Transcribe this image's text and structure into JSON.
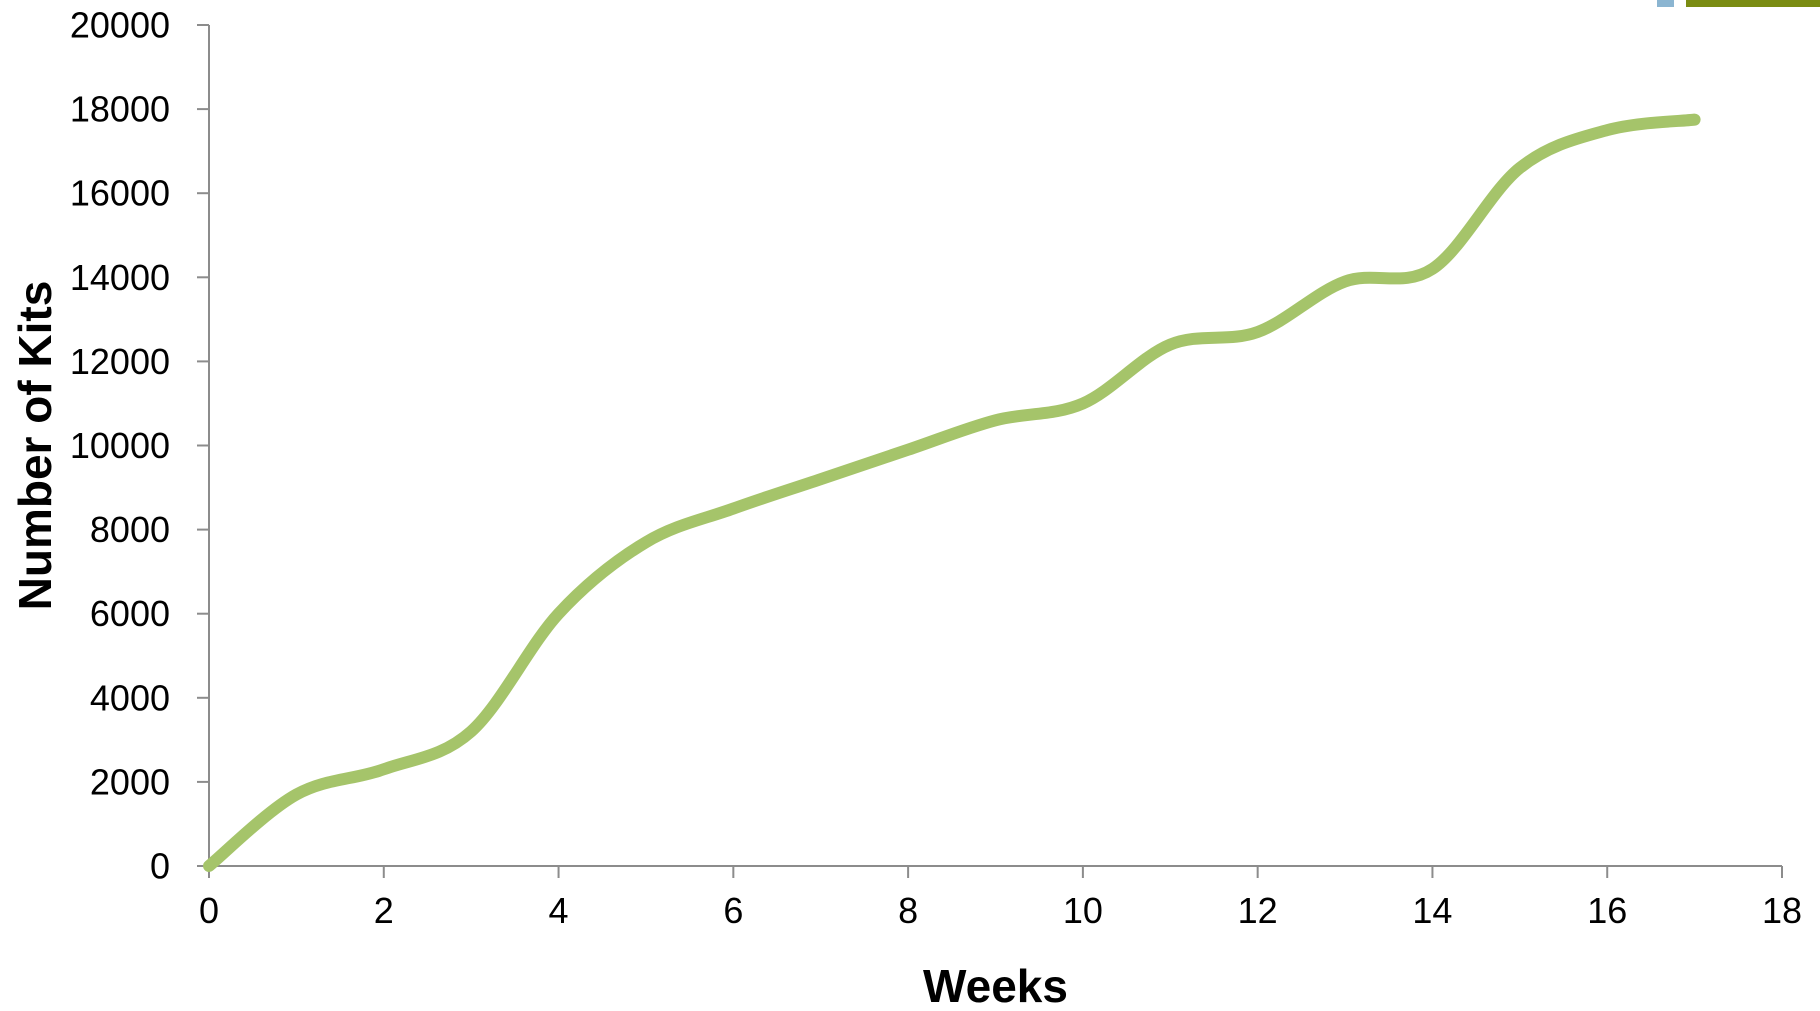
{
  "chart_data": {
    "type": "line",
    "title": "",
    "xlabel": "Weeks",
    "ylabel": "Number of Kits",
    "xlim": [
      0,
      18
    ],
    "ylim": [
      0,
      20000
    ],
    "x_ticks": [
      0,
      2,
      4,
      6,
      8,
      10,
      12,
      14,
      16,
      18
    ],
    "y_ticks": [
      0,
      2000,
      4000,
      6000,
      8000,
      10000,
      12000,
      14000,
      16000,
      18000,
      20000
    ],
    "grid": false,
    "legend": false,
    "smooth": true,
    "series": [
      {
        "color": "#a5c46a",
        "points": [
          [
            0,
            0
          ],
          [
            1,
            1700
          ],
          [
            2,
            2300
          ],
          [
            3,
            3200
          ],
          [
            4,
            6000
          ],
          [
            5,
            7700
          ],
          [
            6,
            8500
          ],
          [
            7,
            9200
          ],
          [
            8,
            9900
          ],
          [
            9,
            10600
          ],
          [
            10,
            11000
          ],
          [
            11,
            12400
          ],
          [
            12,
            12700
          ],
          [
            13,
            13900
          ],
          [
            14,
            14200
          ],
          [
            15,
            16600
          ],
          [
            16,
            17500
          ],
          [
            17,
            17750
          ]
        ]
      }
    ]
  },
  "decorations": {
    "corner_marks": [
      {
        "name": "blue-square-mark",
        "color": "#8bb5d1"
      },
      {
        "name": "olive-bar-mark",
        "color": "#7a8c12"
      }
    ]
  }
}
